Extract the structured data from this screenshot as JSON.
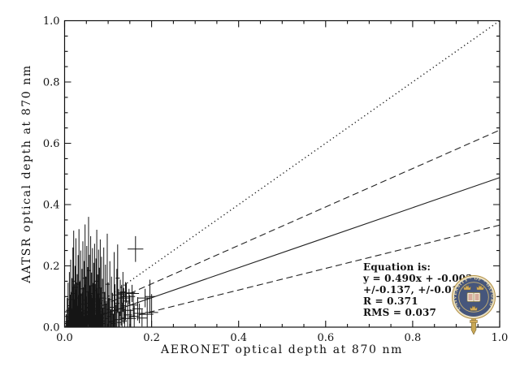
{
  "chart_data": {
    "type": "scatter",
    "title": "",
    "xlabel": "AERONET optical depth at 870 nm",
    "ylabel": "AATSR optical depth at 870 nm",
    "xlim": [
      0.0,
      1.0
    ],
    "ylim": [
      0.0,
      1.0
    ],
    "xticks": [
      "0.0",
      "0.2",
      "0.4",
      "0.6",
      "0.8",
      "1.0"
    ],
    "yticks": [
      "0.0",
      "0.2",
      "0.4",
      "0.6",
      "0.8",
      "1.0"
    ],
    "xtick_values": [
      0,
      0.2,
      0.4,
      0.6,
      0.8,
      1.0
    ],
    "ytick_values": [
      0,
      0.2,
      0.4,
      0.6,
      0.8,
      1.0
    ],
    "minor_tick_step": 0.05,
    "grid": false,
    "legend": "none",
    "fit": {
      "slope": 0.49,
      "intercept": -0.002,
      "slope_err": 0.137,
      "intercept_err": 0.018,
      "R": 0.371,
      "RMS": 0.037
    },
    "lines": [
      {
        "name": "one-to-one-line",
        "style": "dotted",
        "x0": 0,
        "y0": 0,
        "x1": 1,
        "y1": 1
      },
      {
        "name": "fit-line",
        "style": "solid",
        "slope": 0.49,
        "intercept": -0.002
      },
      {
        "name": "fit-upper-bound",
        "style": "dashed",
        "slope": 0.627,
        "intercept": 0.016
      },
      {
        "name": "fit-lower-bound",
        "style": "dashed",
        "slope": 0.353,
        "intercept": -0.02
      }
    ],
    "annotation": {
      "lines": [
        "Equation is:",
        "y = 0.490x + -0.002",
        "+/-0.137, +/-0.018",
        "R = 0.371",
        "RMS = 0.037"
      ]
    },
    "points_format": [
      "x",
      "y",
      "xerr",
      "yerr"
    ],
    "points": [
      [
        0.004,
        0.012,
        0.002,
        0.03
      ],
      [
        0.006,
        0.035,
        0.002,
        0.06
      ],
      [
        0.007,
        0.008,
        0.002,
        0.025
      ],
      [
        0.008,
        0.055,
        0.002,
        0.09
      ],
      [
        0.009,
        0.02,
        0.002,
        0.045
      ],
      [
        0.01,
        0.004,
        0.002,
        0.02
      ],
      [
        0.011,
        0.07,
        0.002,
        0.11
      ],
      [
        0.012,
        0.03,
        0.002,
        0.055
      ],
      [
        0.013,
        0.012,
        0.002,
        0.035
      ],
      [
        0.014,
        0.09,
        0.002,
        0.13
      ],
      [
        0.015,
        0.045,
        0.002,
        0.07
      ],
      [
        0.016,
        0.018,
        0.002,
        0.04
      ],
      [
        0.017,
        0.06,
        0.003,
        0.1
      ],
      [
        0.018,
        0.008,
        0.002,
        0.028
      ],
      [
        0.019,
        0.11,
        0.003,
        0.15
      ],
      [
        0.02,
        0.035,
        0.002,
        0.06
      ],
      [
        0.021,
        0.15,
        0.003,
        0.165
      ],
      [
        0.022,
        0.055,
        0.002,
        0.085
      ],
      [
        0.023,
        0.015,
        0.002,
        0.038
      ],
      [
        0.024,
        0.08,
        0.003,
        0.12
      ],
      [
        0.025,
        0.028,
        0.002,
        0.05
      ],
      [
        0.026,
        0.13,
        0.003,
        0.16
      ],
      [
        0.027,
        0.048,
        0.002,
        0.075
      ],
      [
        0.028,
        0.01,
        0.002,
        0.03
      ],
      [
        0.029,
        0.068,
        0.003,
        0.105
      ],
      [
        0.03,
        0.022,
        0.002,
        0.048
      ],
      [
        0.031,
        0.095,
        0.003,
        0.14
      ],
      [
        0.032,
        0.04,
        0.002,
        0.065
      ],
      [
        0.033,
        0.14,
        0.003,
        0.18
      ],
      [
        0.034,
        0.012,
        0.002,
        0.032
      ],
      [
        0.035,
        0.058,
        0.002,
        0.09
      ],
      [
        0.036,
        0.025,
        0.002,
        0.05
      ],
      [
        0.037,
        0.105,
        0.003,
        0.145
      ],
      [
        0.038,
        0.042,
        0.002,
        0.068
      ],
      [
        0.039,
        0.015,
        0.002,
        0.036
      ],
      [
        0.04,
        0.075,
        0.003,
        0.115
      ],
      [
        0.041,
        0.03,
        0.002,
        0.055
      ],
      [
        0.042,
        0.125,
        0.003,
        0.155
      ],
      [
        0.043,
        0.05,
        0.002,
        0.08
      ],
      [
        0.044,
        0.008,
        0.002,
        0.026
      ],
      [
        0.045,
        0.088,
        0.003,
        0.128
      ],
      [
        0.046,
        0.035,
        0.002,
        0.058
      ],
      [
        0.047,
        0.16,
        0.003,
        0.175
      ],
      [
        0.048,
        0.02,
        0.002,
        0.044
      ],
      [
        0.049,
        0.065,
        0.003,
        0.1
      ],
      [
        0.05,
        0.038,
        0.002,
        0.062
      ],
      [
        0.051,
        0.115,
        0.003,
        0.15
      ],
      [
        0.052,
        0.01,
        0.002,
        0.03
      ],
      [
        0.053,
        0.078,
        0.003,
        0.118
      ],
      [
        0.054,
        0.045,
        0.002,
        0.072
      ],
      [
        0.055,
        0.185,
        0.003,
        0.175
      ],
      [
        0.056,
        0.028,
        0.002,
        0.052
      ],
      [
        0.057,
        0.098,
        0.003,
        0.138
      ],
      [
        0.058,
        0.052,
        0.002,
        0.082
      ],
      [
        0.059,
        0.018,
        0.002,
        0.04
      ],
      [
        0.06,
        0.135,
        0.003,
        0.162
      ],
      [
        0.061,
        0.04,
        0.002,
        0.066
      ],
      [
        0.062,
        0.07,
        0.003,
        0.108
      ],
      [
        0.063,
        0.025,
        0.002,
        0.048
      ],
      [
        0.064,
        0.11,
        0.003,
        0.148
      ],
      [
        0.065,
        0.048,
        0.002,
        0.075
      ],
      [
        0.066,
        0.015,
        0.002,
        0.036
      ],
      [
        0.067,
        0.085,
        0.003,
        0.125
      ],
      [
        0.068,
        0.032,
        0.002,
        0.056
      ],
      [
        0.069,
        0.12,
        0.003,
        0.152
      ],
      [
        0.07,
        0.055,
        0.002,
        0.086
      ],
      [
        0.071,
        0.01,
        0.002,
        0.03
      ],
      [
        0.072,
        0.092,
        0.003,
        0.132
      ],
      [
        0.073,
        0.038,
        0.002,
        0.062
      ],
      [
        0.074,
        0.15,
        0.003,
        0.168
      ],
      [
        0.075,
        0.022,
        0.002,
        0.046
      ],
      [
        0.076,
        0.068,
        0.003,
        0.104
      ],
      [
        0.077,
        0.042,
        0.002,
        0.068
      ],
      [
        0.078,
        0.108,
        0.003,
        0.145
      ],
      [
        0.079,
        0.016,
        0.002,
        0.038
      ],
      [
        0.08,
        0.078,
        0.003,
        0.116
      ],
      [
        0.081,
        0.035,
        0.002,
        0.058
      ],
      [
        0.082,
        0.128,
        0.003,
        0.158
      ],
      [
        0.083,
        0.05,
        0.002,
        0.078
      ],
      [
        0.084,
        0.012,
        0.002,
        0.032
      ],
      [
        0.085,
        0.095,
        0.003,
        0.135
      ],
      [
        0.086,
        0.03,
        0.002,
        0.054
      ],
      [
        0.087,
        0.062,
        0.003,
        0.096
      ],
      [
        0.088,
        0.02,
        0.002,
        0.042
      ],
      [
        0.09,
        0.112,
        0.003,
        0.148
      ],
      [
        0.092,
        0.045,
        0.002,
        0.07
      ],
      [
        0.094,
        0.082,
        0.003,
        0.122
      ],
      [
        0.096,
        0.028,
        0.002,
        0.05
      ],
      [
        0.098,
        0.14,
        0.003,
        0.165
      ],
      [
        0.1,
        0.058,
        0.003,
        0.088
      ],
      [
        0.102,
        0.035,
        0.004,
        0.06
      ],
      [
        0.104,
        0.09,
        0.004,
        0.125
      ],
      [
        0.106,
        0.018,
        0.004,
        0.04
      ],
      [
        0.108,
        0.065,
        0.005,
        0.1
      ],
      [
        0.11,
        0.042,
        0.005,
        0.07
      ],
      [
        0.112,
        0.012,
        0.004,
        0.032
      ],
      [
        0.114,
        0.105,
        0.005,
        0.14
      ],
      [
        0.116,
        0.055,
        0.005,
        0.085
      ],
      [
        0.118,
        0.025,
        0.004,
        0.048
      ],
      [
        0.12,
        0.078,
        0.006,
        0.112
      ],
      [
        0.122,
        0.16,
        0.005,
        0.11
      ],
      [
        0.124,
        0.048,
        0.005,
        0.075
      ],
      [
        0.126,
        0.015,
        0.004,
        0.036
      ],
      [
        0.128,
        0.095,
        0.006,
        0.06
      ],
      [
        0.13,
        0.06,
        0.006,
        0.055
      ],
      [
        0.132,
        0.03,
        0.005,
        0.05
      ],
      [
        0.134,
        0.115,
        0.006,
        0.065
      ],
      [
        0.136,
        0.07,
        0.006,
        0.058
      ],
      [
        0.138,
        0.02,
        0.005,
        0.042
      ],
      [
        0.14,
        0.085,
        0.007,
        0.062
      ],
      [
        0.005,
        0.003,
        0.002,
        0.018
      ],
      [
        0.008,
        0.016,
        0.002,
        0.034
      ],
      [
        0.011,
        0.006,
        0.002,
        0.022
      ],
      [
        0.013,
        0.04,
        0.002,
        0.066
      ],
      [
        0.016,
        0.01,
        0.002,
        0.028
      ],
      [
        0.018,
        0.052,
        0.002,
        0.08
      ],
      [
        0.021,
        0.007,
        0.002,
        0.024
      ],
      [
        0.023,
        0.033,
        0.002,
        0.058
      ],
      [
        0.026,
        0.014,
        0.002,
        0.034
      ],
      [
        0.028,
        0.058,
        0.002,
        0.088
      ],
      [
        0.031,
        0.005,
        0.002,
        0.02
      ],
      [
        0.033,
        0.026,
        0.002,
        0.05
      ],
      [
        0.036,
        0.06,
        0.002,
        0.092
      ],
      [
        0.038,
        0.009,
        0.002,
        0.026
      ],
      [
        0.041,
        0.044,
        0.002,
        0.07
      ],
      [
        0.043,
        0.018,
        0.002,
        0.038
      ],
      [
        0.046,
        0.055,
        0.002,
        0.084
      ],
      [
        0.048,
        0.007,
        0.002,
        0.024
      ],
      [
        0.051,
        0.03,
        0.002,
        0.054
      ],
      [
        0.053,
        0.062,
        0.002,
        0.094
      ],
      [
        0.056,
        0.012,
        0.002,
        0.03
      ],
      [
        0.058,
        0.046,
        0.002,
        0.072
      ],
      [
        0.061,
        0.008,
        0.002,
        0.026
      ],
      [
        0.063,
        0.035,
        0.002,
        0.06
      ],
      [
        0.066,
        0.058,
        0.002,
        0.086
      ],
      [
        0.069,
        0.016,
        0.002,
        0.036
      ],
      [
        0.072,
        0.028,
        0.002,
        0.052
      ],
      [
        0.075,
        0.05,
        0.002,
        0.078
      ],
      [
        0.078,
        0.01,
        0.002,
        0.028
      ],
      [
        0.082,
        0.04,
        0.002,
        0.064
      ],
      [
        0.131,
        0.108,
        0.01,
        0.03
      ],
      [
        0.135,
        0.095,
        0.012,
        0.028
      ],
      [
        0.142,
        0.112,
        0.02,
        0.032
      ],
      [
        0.145,
        0.04,
        0.01,
        0.045
      ],
      [
        0.148,
        0.1,
        0.014,
        0.025
      ],
      [
        0.15,
        0.055,
        0.01,
        0.05
      ],
      [
        0.152,
        0.028,
        0.012,
        0.03
      ],
      [
        0.155,
        0.11,
        0.016,
        0.028
      ],
      [
        0.158,
        0.072,
        0.01,
        0.04
      ],
      [
        0.16,
        0.035,
        0.012,
        0.035
      ],
      [
        0.163,
        0.255,
        0.018,
        0.042
      ],
      [
        0.168,
        0.06,
        0.012,
        0.038
      ],
      [
        0.172,
        0.045,
        0.014,
        0.032
      ],
      [
        0.178,
        0.03,
        0.012,
        0.028
      ],
      [
        0.185,
        0.095,
        0.016,
        0.03
      ],
      [
        0.19,
        0.042,
        0.014,
        0.055
      ],
      [
        0.196,
        0.1,
        0.012,
        0.055
      ],
      [
        0.2,
        0.048,
        0.015,
        0.06
      ]
    ]
  },
  "logo": {
    "name": "university-of-oxford-crest",
    "ring_text": "UNIVERSITY · OF · OXFORD",
    "colors": {
      "navy": "#46567c",
      "cream": "#e9dfc2",
      "gold": "#d4ad5a",
      "white": "#f4eedd"
    }
  }
}
